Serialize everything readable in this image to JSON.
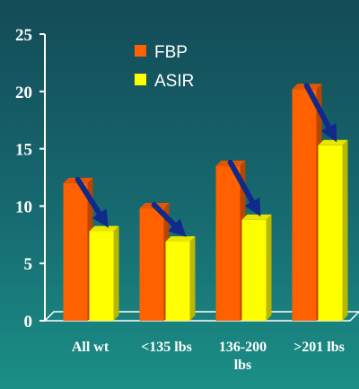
{
  "chart_data": {
    "type": "bar",
    "categories": [
      [
        "All wt"
      ],
      [
        "<135 lbs"
      ],
      [
        "136-200",
        "lbs"
      ],
      [
        ">201 lbs"
      ]
    ],
    "series": [
      {
        "name": "FBP",
        "color": "#ff6000",
        "values": [
          12,
          9.8,
          13.5,
          20.2
        ]
      },
      {
        "name": "ASIR",
        "color": "#ffff00",
        "values": [
          7.8,
          6.9,
          8.8,
          15.3
        ]
      }
    ],
    "ylim": [
      0,
      25
    ],
    "yticks": [
      0,
      5,
      10,
      15,
      20,
      25
    ],
    "grid": false,
    "legend_position": "top-center",
    "annotations": "downward arrows from each FBP bar to the matching ASIR bar",
    "arrow_color": "#0f2a8a",
    "title": "",
    "xlabel": "",
    "ylabel": ""
  }
}
